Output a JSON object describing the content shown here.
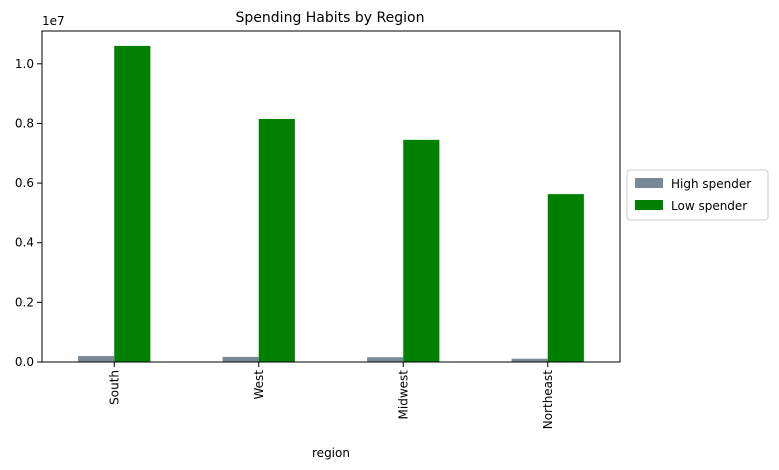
{
  "chart_data": {
    "type": "bar",
    "title": "Spending Habits by Region",
    "xlabel": "region",
    "ylabel": "",
    "y_offset_label": "1e7",
    "categories": [
      "South",
      "West",
      "Midwest",
      "Northeast"
    ],
    "series": [
      {
        "name": "High spender",
        "color": "#778899",
        "values": [
          200000,
          170000,
          160000,
          110000
        ]
      },
      {
        "name": "Low spender",
        "color": "#008000",
        "values": [
          10600000,
          8150000,
          7450000,
          5630000
        ]
      }
    ],
    "ylim": [
      0,
      11100000
    ],
    "yticks": [
      0,
      2000000,
      4000000,
      6000000,
      8000000,
      10000000
    ],
    "ytick_labels": [
      "0.0",
      "0.2",
      "0.4",
      "0.6",
      "0.8",
      "1.0"
    ],
    "grid": false,
    "legend_position": "center-right outside"
  }
}
